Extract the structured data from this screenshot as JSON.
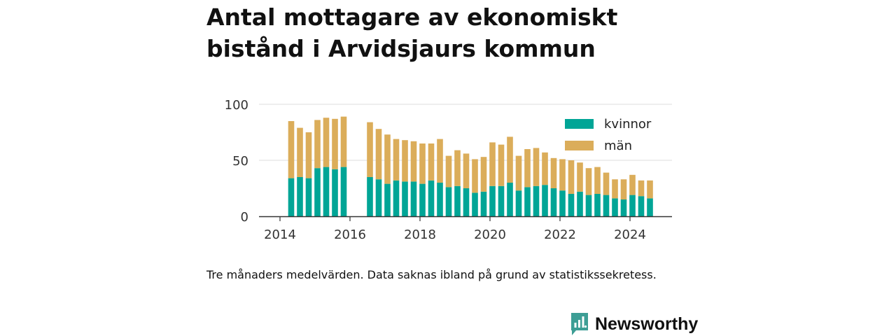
{
  "title": "Antal mottagare av ekonomiskt bistånd i Arvidsjaurs kommun",
  "caption": "Tre månaders medelvärden. Data saknas ibland på grund av statistikssekretess.",
  "brand": {
    "name": "Newsworthy",
    "color": "#3d9e95"
  },
  "chart_data": {
    "type": "bar",
    "stacked": true,
    "x_ticks": [
      "2014",
      "2016",
      "2018",
      "2020",
      "2022",
      "2024"
    ],
    "y_ticks": [
      "0",
      "50",
      "100"
    ],
    "ylim": [
      0,
      100
    ],
    "grid": true,
    "legend_position": "top-right",
    "periods": [
      "2014-Q2",
      "2014-Q3",
      "2014-Q4",
      "2015-Q1",
      "2015-Q2",
      "2015-Q3",
      "2015-Q4",
      "2016-Q1",
      "2016-Q2",
      "2016-Q3",
      "2016-Q4",
      "2017-Q1",
      "2017-Q2",
      "2017-Q3",
      "2017-Q4",
      "2018-Q1",
      "2018-Q2",
      "2018-Q3",
      "2018-Q4",
      "2019-Q1",
      "2019-Q2",
      "2019-Q3",
      "2019-Q4",
      "2020-Q1",
      "2020-Q2",
      "2020-Q3",
      "2020-Q4",
      "2021-Q1",
      "2021-Q2",
      "2021-Q3",
      "2021-Q4",
      "2022-Q1",
      "2022-Q2",
      "2022-Q3",
      "2022-Q4",
      "2023-Q1",
      "2023-Q2",
      "2023-Q3",
      "2023-Q4",
      "2024-Q1",
      "2024-Q2",
      "2024-Q3"
    ],
    "series": [
      {
        "name": "kvinnor",
        "color": "#00a596",
        "values": [
          34,
          35,
          34,
          43,
          44,
          42,
          44,
          null,
          null,
          35,
          33,
          29,
          32,
          31,
          31,
          29,
          32,
          30,
          26,
          27,
          25,
          21,
          22,
          27,
          27,
          30,
          23,
          26,
          27,
          28,
          25,
          23,
          20,
          22,
          19,
          20,
          19,
          16,
          15,
          19,
          18,
          16
        ]
      },
      {
        "name": "män",
        "color": "#dbad5a",
        "values": [
          51,
          44,
          41,
          43,
          44,
          45,
          45,
          null,
          null,
          49,
          45,
          44,
          37,
          37,
          36,
          36,
          33,
          39,
          28,
          32,
          31,
          30,
          31,
          39,
          37,
          41,
          31,
          34,
          34,
          29,
          27,
          28,
          30,
          26,
          24,
          24,
          20,
          17,
          18,
          18,
          14,
          16
        ]
      }
    ]
  }
}
